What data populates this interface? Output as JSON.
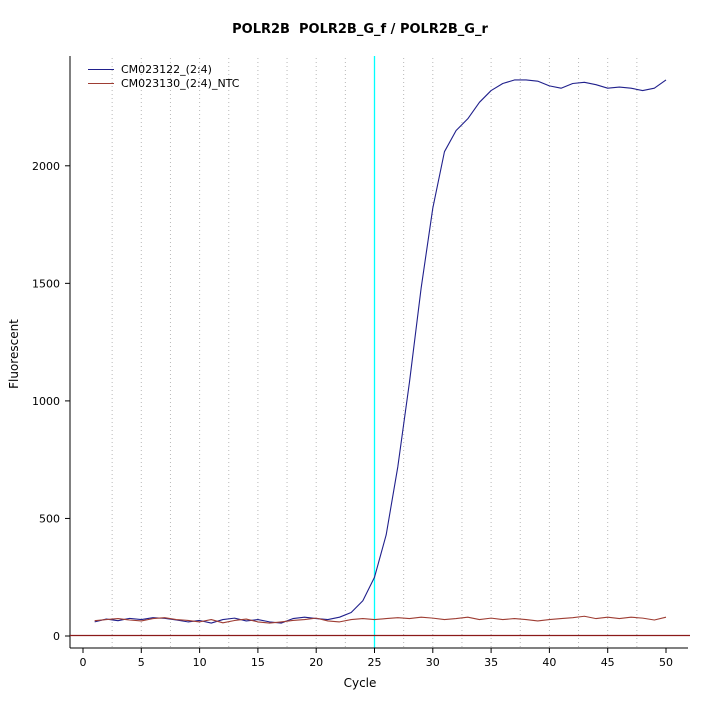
{
  "chart_data": {
    "type": "line",
    "title": "POLR2B  POLR2B_G_f / POLR2B_G_r",
    "xlabel": "Cycle",
    "ylabel": "Fluorescent",
    "xlim": [
      0,
      50
    ],
    "ylim": [
      0,
      2450
    ],
    "xticks": [
      0,
      5,
      10,
      15,
      20,
      25,
      30,
      35,
      40,
      45,
      50
    ],
    "yticks": [
      0,
      500,
      1000,
      1500,
      2000
    ],
    "grid": {
      "vertical_dotted_step": 2.5,
      "color": "#b8b8b8"
    },
    "legend_position": "top-left",
    "x": [
      1,
      2,
      3,
      4,
      5,
      6,
      7,
      8,
      9,
      10,
      11,
      12,
      13,
      14,
      15,
      16,
      17,
      18,
      19,
      20,
      21,
      22,
      23,
      24,
      25,
      26,
      27,
      28,
      29,
      30,
      31,
      32,
      33,
      34,
      35,
      36,
      37,
      38,
      39,
      40,
      41,
      42,
      43,
      44,
      45,
      46,
      47,
      48,
      49,
      50
    ],
    "series": [
      {
        "name": "CM023122_(2:4)",
        "color": "#20208c",
        "values": [
          60,
          72,
          65,
          75,
          70,
          78,
          75,
          68,
          60,
          66,
          55,
          70,
          76,
          64,
          70,
          60,
          55,
          74,
          80,
          74,
          70,
          80,
          100,
          150,
          250,
          430,
          720,
          1080,
          1480,
          1820,
          2060,
          2150,
          2200,
          2270,
          2320,
          2350,
          2365,
          2365,
          2360,
          2340,
          2330,
          2350,
          2355,
          2345,
          2330,
          2335,
          2330,
          2320,
          2330,
          2365
        ]
      },
      {
        "name": "CM023130_(2:4)_NTC",
        "color": "#9e3d33",
        "values": [
          65,
          70,
          74,
          68,
          64,
          74,
          78,
          70,
          66,
          60,
          70,
          56,
          66,
          72,
          60,
          55,
          60,
          66,
          70,
          76,
          64,
          60,
          70,
          74,
          70,
          74,
          78,
          74,
          80,
          76,
          70,
          74,
          80,
          70,
          76,
          70,
          74,
          70,
          64,
          70,
          74,
          78,
          84,
          74,
          80,
          74,
          80,
          76,
          68,
          80
        ]
      }
    ],
    "annotations": {
      "threshold_line": {
        "y": 2,
        "color": "#8b1a1a"
      },
      "vertical_line": {
        "x": 25,
        "color": "#00ffff"
      }
    }
  }
}
